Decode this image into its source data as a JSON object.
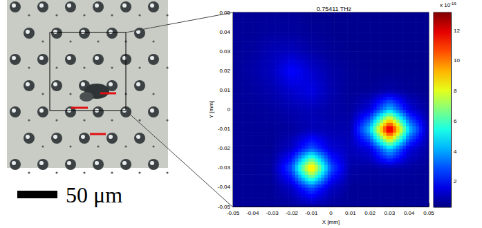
{
  "chart_data": {
    "type": "heatmap",
    "title": "0.75411 THz",
    "x_label": "X [mm]",
    "y_label": "Y [mm]",
    "x": [
      -0.05,
      -0.04,
      -0.03,
      -0.02,
      -0.01,
      0,
      0.01,
      0.02,
      0.03,
      0.04,
      0.05
    ],
    "y": [
      -0.05,
      -0.04,
      -0.03,
      -0.02,
      -0.01,
      0,
      0.01,
      0.02,
      0.03,
      0.04,
      0.05
    ],
    "cells": [
      [
        0.6,
        0.6,
        0.6,
        0.6,
        0.6,
        0.6,
        0.6,
        0.6,
        0.6,
        0.6,
        0.6
      ],
      [
        0.6,
        0.6,
        0.6,
        1.2,
        3.0,
        1.2,
        0.6,
        0.6,
        0.6,
        0.6,
        0.6
      ],
      [
        0.6,
        0.6,
        0.7,
        3.0,
        9.5,
        3.0,
        0.8,
        0.7,
        0.8,
        0.7,
        0.6
      ],
      [
        0.6,
        0.6,
        0.6,
        1.2,
        3.0,
        1.4,
        1.0,
        1.5,
        4.5,
        1.5,
        0.7
      ],
      [
        0.6,
        0.6,
        0.6,
        0.7,
        1.0,
        0.9,
        0.9,
        4.5,
        13.0,
        4.5,
        0.8
      ],
      [
        0.6,
        0.6,
        0.7,
        0.9,
        1.0,
        0.8,
        0.7,
        1.5,
        4.5,
        1.5,
        0.6
      ],
      [
        0.6,
        0.7,
        0.9,
        1.3,
        1.6,
        0.9,
        0.6,
        0.6,
        0.8,
        0.6,
        0.5
      ],
      [
        0.6,
        0.8,
        1.1,
        2.0,
        1.3,
        0.8,
        0.6,
        0.5,
        0.5,
        0.5,
        0.5
      ],
      [
        0.6,
        0.7,
        1.0,
        1.1,
        0.8,
        0.6,
        0.5,
        0.5,
        0.5,
        0.5,
        0.5
      ],
      [
        0.6,
        0.6,
        0.7,
        0.7,
        0.6,
        0.5,
        0.5,
        0.5,
        0.5,
        0.5,
        0.5
      ],
      [
        0.6,
        0.6,
        0.6,
        0.6,
        0.5,
        0.5,
        0.5,
        0.5,
        0.5,
        0.5,
        0.5
      ]
    ],
    "xlim": [
      -0.05,
      0.05
    ],
    "xticks": [
      -0.05,
      -0.04,
      -0.03,
      -0.02,
      -0.01,
      0,
      0.01,
      0.02,
      0.03,
      0.04,
      0.05
    ],
    "ylim": [
      -0.05,
      0.05
    ],
    "yticks": [
      -0.05,
      -0.04,
      -0.03,
      -0.02,
      -0.01,
      0,
      0.01,
      0.02,
      0.03,
      0.04,
      0.05
    ],
    "grid": false,
    "colorbar": {
      "lim": [
        0.3,
        13.2
      ],
      "ticks": [
        2,
        4,
        6,
        8,
        10,
        12
      ],
      "scale": {
        "base": "x 10",
        "exponent": "-16"
      }
    }
  },
  "photo": {
    "scale_bar": "50 μm"
  }
}
